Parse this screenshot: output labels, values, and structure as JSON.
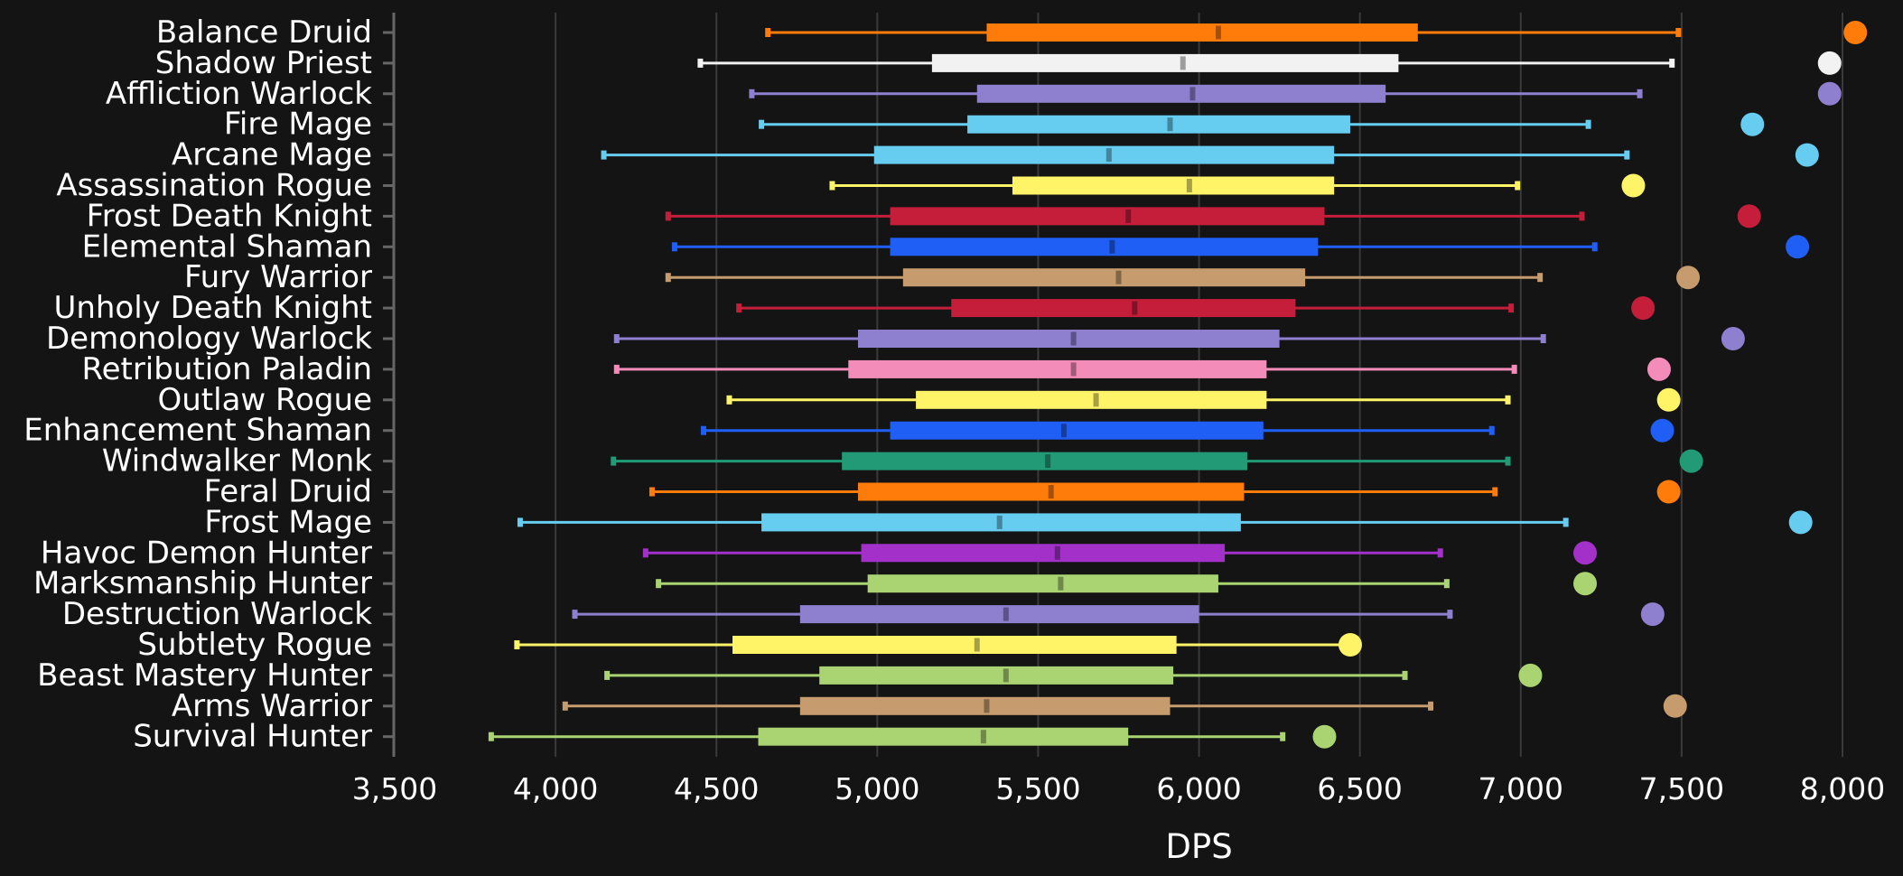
{
  "chart_data": {
    "type": "box",
    "orientation": "horizontal",
    "xlabel": "DPS",
    "xlim": [
      3500,
      8000
    ],
    "xticks": [
      3500,
      4000,
      4500,
      5000,
      5500,
      6000,
      6500,
      7000,
      7500,
      8000
    ],
    "xtick_labels": [
      "3,500",
      "4,000",
      "4,500",
      "5,000",
      "5,500",
      "6,000",
      "6,500",
      "7,000",
      "7,500",
      "8,000"
    ],
    "grid": "vertical",
    "series": [
      {
        "name": "Balance Druid",
        "color": "#ff7c0a",
        "min": 4660,
        "q1": 5340,
        "median": 6060,
        "q3": 6680,
        "max": 7490,
        "outlier": 8040
      },
      {
        "name": "Shadow Priest",
        "color": "#f2f2f2",
        "min": 4450,
        "q1": 5170,
        "median": 5950,
        "q3": 6620,
        "max": 7470,
        "outlier": 7960
      },
      {
        "name": "Affliction Warlock",
        "color": "#8f7fcf",
        "min": 4610,
        "q1": 5310,
        "median": 5980,
        "q3": 6580,
        "max": 7370,
        "outlier": 7960
      },
      {
        "name": "Fire Mage",
        "color": "#67cdf0",
        "min": 4640,
        "q1": 5280,
        "median": 5910,
        "q3": 6470,
        "max": 7210,
        "outlier": 7720
      },
      {
        "name": "Arcane Mage",
        "color": "#67cdf0",
        "min": 4150,
        "q1": 4990,
        "median": 5720,
        "q3": 6420,
        "max": 7330,
        "outlier": 7890
      },
      {
        "name": "Assassination Rogue",
        "color": "#fff468",
        "min": 4860,
        "q1": 5420,
        "median": 5970,
        "q3": 6420,
        "max": 6990,
        "outlier": 7350
      },
      {
        "name": "Frost Death Knight",
        "color": "#c41e3a",
        "min": 4350,
        "q1": 5040,
        "median": 5780,
        "q3": 6390,
        "max": 7190,
        "outlier": 7710
      },
      {
        "name": "Elemental Shaman",
        "color": "#1f5ff5",
        "min": 4370,
        "q1": 5040,
        "median": 5730,
        "q3": 6370,
        "max": 7230,
        "outlier": 7860
      },
      {
        "name": "Fury Warrior",
        "color": "#c69b6d",
        "min": 4350,
        "q1": 5080,
        "median": 5750,
        "q3": 6330,
        "max": 7060,
        "outlier": 7520
      },
      {
        "name": "Unholy Death Knight",
        "color": "#c41e3a",
        "min": 4570,
        "q1": 5230,
        "median": 5800,
        "q3": 6300,
        "max": 6970,
        "outlier": 7380
      },
      {
        "name": "Demonology Warlock",
        "color": "#8f7fcf",
        "min": 4190,
        "q1": 4940,
        "median": 5610,
        "q3": 6250,
        "max": 7070,
        "outlier": 7660
      },
      {
        "name": "Retribution Paladin",
        "color": "#f48cba",
        "min": 4190,
        "q1": 4910,
        "median": 5610,
        "q3": 6210,
        "max": 6980,
        "outlier": 7430
      },
      {
        "name": "Outlaw Rogue",
        "color": "#fff468",
        "min": 4540,
        "q1": 5120,
        "median": 5680,
        "q3": 6210,
        "max": 6960,
        "outlier": 7460
      },
      {
        "name": "Enhancement Shaman",
        "color": "#1f5ff5",
        "min": 4460,
        "q1": 5040,
        "median": 5580,
        "q3": 6200,
        "max": 6910,
        "outlier": 7440
      },
      {
        "name": "Windwalker Monk",
        "color": "#219a75",
        "min": 4180,
        "q1": 4890,
        "median": 5530,
        "q3": 6150,
        "max": 6960,
        "outlier": 7530
      },
      {
        "name": "Feral Druid",
        "color": "#ff7c0a",
        "min": 4300,
        "q1": 4940,
        "median": 5540,
        "q3": 6140,
        "max": 6920,
        "outlier": 7460
      },
      {
        "name": "Frost Mage",
        "color": "#67cdf0",
        "min": 3890,
        "q1": 4640,
        "median": 5380,
        "q3": 6130,
        "max": 7140,
        "outlier": 7870
      },
      {
        "name": "Havoc Demon Hunter",
        "color": "#a330c9",
        "min": 4280,
        "q1": 4950,
        "median": 5560,
        "q3": 6080,
        "max": 6750,
        "outlier": 7200
      },
      {
        "name": "Marksmanship Hunter",
        "color": "#aad372",
        "min": 4320,
        "q1": 4970,
        "median": 5570,
        "q3": 6060,
        "max": 6770,
        "outlier": 7200
      },
      {
        "name": "Destruction Warlock",
        "color": "#8f7fcf",
        "min": 4060,
        "q1": 4760,
        "median": 5400,
        "q3": 6000,
        "max": 6780,
        "outlier": 7410
      },
      {
        "name": "Subtlety Rogue",
        "color": "#fff468",
        "min": 3880,
        "q1": 4550,
        "median": 5310,
        "q3": 5930,
        "max": 6470,
        "outlier": 6470
      },
      {
        "name": "Beast Mastery Hunter",
        "color": "#aad372",
        "min": 4160,
        "q1": 4820,
        "median": 5400,
        "q3": 5920,
        "max": 6640,
        "outlier": 7030
      },
      {
        "name": "Arms Warrior",
        "color": "#c69b6d",
        "min": 4030,
        "q1": 4760,
        "median": 5340,
        "q3": 5910,
        "max": 6720,
        "outlier": 7480
      },
      {
        "name": "Survival Hunter",
        "color": "#aad372",
        "min": 3800,
        "q1": 4630,
        "median": 5330,
        "q3": 5780,
        "max": 6260,
        "outlier": 6390
      }
    ]
  }
}
